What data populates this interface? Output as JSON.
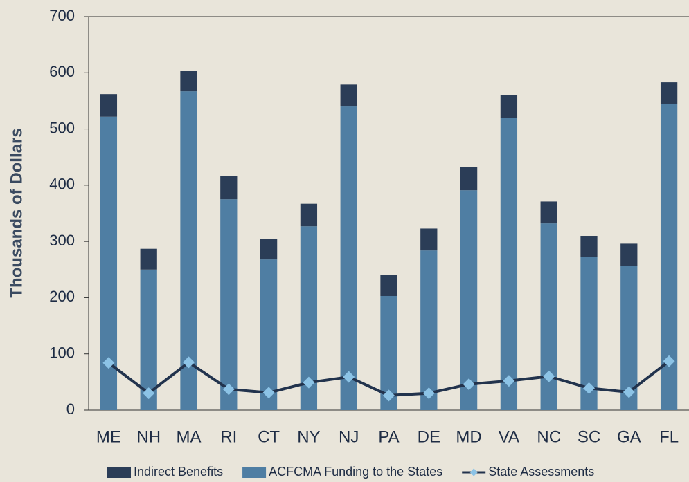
{
  "chart_data": {
    "type": "bar_line",
    "y_label": "Thousands of Dollars",
    "categories": [
      "ME",
      "NH",
      "MA",
      "RI",
      "CT",
      "NY",
      "NJ",
      "PA",
      "DE",
      "MD",
      "VA",
      "NC",
      "SC",
      "GA",
      "FL"
    ],
    "series": [
      {
        "name": "Indirect Benefits",
        "color": "#2b3d57",
        "kind": "bar_top",
        "values": [
          40,
          37,
          36,
          41,
          37,
          40,
          39,
          38,
          39,
          41,
          40,
          39,
          38,
          39,
          38
        ]
      },
      {
        "name": "ACFCMA Funding to the States",
        "color": "#4f7ea3",
        "kind": "bar_bottom",
        "values": [
          522,
          250,
          567,
          375,
          268,
          327,
          540,
          203,
          284,
          391,
          520,
          332,
          272,
          257,
          545
        ]
      },
      {
        "name": "State Assessments",
        "color": "#22334d",
        "marker_color": "#8cc3e6",
        "kind": "line",
        "values": [
          84,
          30,
          85,
          37,
          31,
          49,
          59,
          26,
          30,
          46,
          52,
          60,
          39,
          32,
          87
        ]
      }
    ],
    "ylim": [
      0,
      700
    ],
    "yticks": [
      0,
      100,
      200,
      300,
      400,
      500,
      600,
      700
    ],
    "grid": false
  }
}
